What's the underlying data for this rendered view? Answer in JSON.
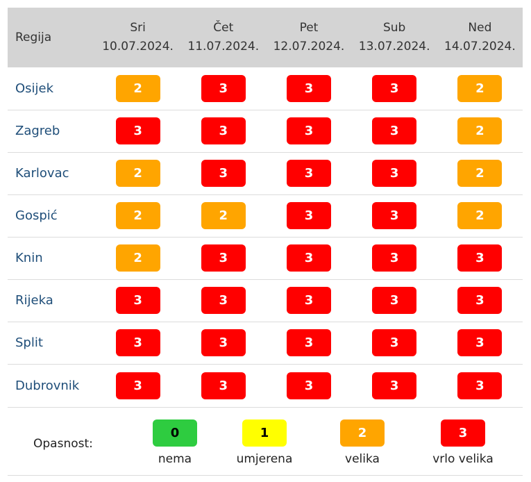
{
  "table": {
    "region_header": "Regija",
    "days": [
      {
        "day": "Sri",
        "date": "10.07.2024."
      },
      {
        "day": "Čet",
        "date": "11.07.2024."
      },
      {
        "day": "Pet",
        "date": "12.07.2024."
      },
      {
        "day": "Sub",
        "date": "13.07.2024."
      },
      {
        "day": "Ned",
        "date": "14.07.2024."
      }
    ],
    "rows": [
      {
        "region": "Osijek",
        "levels": [
          "2",
          "3",
          "3",
          "3",
          "2"
        ]
      },
      {
        "region": "Zagreb",
        "levels": [
          "3",
          "3",
          "3",
          "3",
          "2"
        ]
      },
      {
        "region": "Karlovac",
        "levels": [
          "2",
          "3",
          "3",
          "3",
          "2"
        ]
      },
      {
        "region": "Gospić",
        "levels": [
          "2",
          "2",
          "3",
          "3",
          "2"
        ]
      },
      {
        "region": "Knin",
        "levels": [
          "2",
          "3",
          "3",
          "3",
          "3"
        ]
      },
      {
        "region": "Rijeka",
        "levels": [
          "3",
          "3",
          "3",
          "3",
          "3"
        ]
      },
      {
        "region": "Split",
        "levels": [
          "3",
          "3",
          "3",
          "3",
          "3"
        ]
      },
      {
        "region": "Dubrovnik",
        "levels": [
          "3",
          "3",
          "3",
          "3",
          "3"
        ]
      }
    ]
  },
  "legend": {
    "title": "Opasnost:",
    "items": [
      {
        "level": "0",
        "label": "nema"
      },
      {
        "level": "1",
        "label": "umjerena"
      },
      {
        "level": "2",
        "label": "velika"
      },
      {
        "level": "3",
        "label": "vrlo velika"
      }
    ]
  },
  "colors": {
    "0": {
      "bg": "#2ecc40",
      "fg": "#000000"
    },
    "1": {
      "bg": "#ffff00",
      "fg": "#000000"
    },
    "2": {
      "bg": "#ffa500",
      "fg": "#ffffff"
    },
    "3": {
      "bg": "#ff0000",
      "fg": "#ffffff"
    }
  }
}
